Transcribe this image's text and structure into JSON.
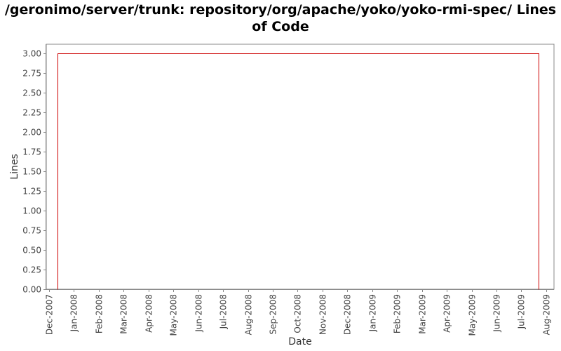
{
  "chart_data": {
    "type": "line",
    "title_line1": "/geronimo/server/trunk: repository/org/apache/yoko/yoko-rmi-spec/ Lines",
    "title_line2": "of Code",
    "xlabel": "Date",
    "ylabel": "Lines",
    "ylim": [
      0,
      3.12
    ],
    "y_ticks": [
      "0.00",
      "0.25",
      "0.50",
      "0.75",
      "1.00",
      "1.25",
      "1.50",
      "1.75",
      "2.00",
      "2.25",
      "2.50",
      "2.75",
      "3.00"
    ],
    "x_range_months": [
      0,
      20.2
    ],
    "x_ticks": [
      {
        "label": "Dec-2007",
        "month": 0
      },
      {
        "label": "Jan-2008",
        "month": 1
      },
      {
        "label": "Feb-2008",
        "month": 2
      },
      {
        "label": "Mar-2008",
        "month": 3
      },
      {
        "label": "Apr-2008",
        "month": 4
      },
      {
        "label": "May-2008",
        "month": 5
      },
      {
        "label": "Jun-2008",
        "month": 6
      },
      {
        "label": "Jul-2008",
        "month": 7
      },
      {
        "label": "Aug-2008",
        "month": 8
      },
      {
        "label": "Sep-2008",
        "month": 9
      },
      {
        "label": "Oct-2008",
        "month": 10
      },
      {
        "label": "Nov-2008",
        "month": 11
      },
      {
        "label": "Dec-2008",
        "month": 12
      },
      {
        "label": "Jan-2009",
        "month": 13
      },
      {
        "label": "Feb-2009",
        "month": 14
      },
      {
        "label": "Mar-2009",
        "month": 15
      },
      {
        "label": "Apr-2009",
        "month": 16
      },
      {
        "label": "May-2009",
        "month": 17
      },
      {
        "label": "Jun-2009",
        "month": 18
      },
      {
        "label": "Jul-2009",
        "month": 19
      },
      {
        "label": "Aug-2009",
        "month": 20
      }
    ],
    "series": [
      {
        "name": "Lines of Code",
        "color": "#cc0000",
        "points": [
          {
            "month": 0.35,
            "value": 0
          },
          {
            "month": 0.35,
            "value": 3
          },
          {
            "month": 19.7,
            "value": 3
          },
          {
            "month": 19.7,
            "value": 0
          }
        ]
      }
    ],
    "colors": {
      "axis": "#888888",
      "tick_text": "#444444",
      "label_text": "#333333",
      "plot_border": "#888888"
    }
  }
}
